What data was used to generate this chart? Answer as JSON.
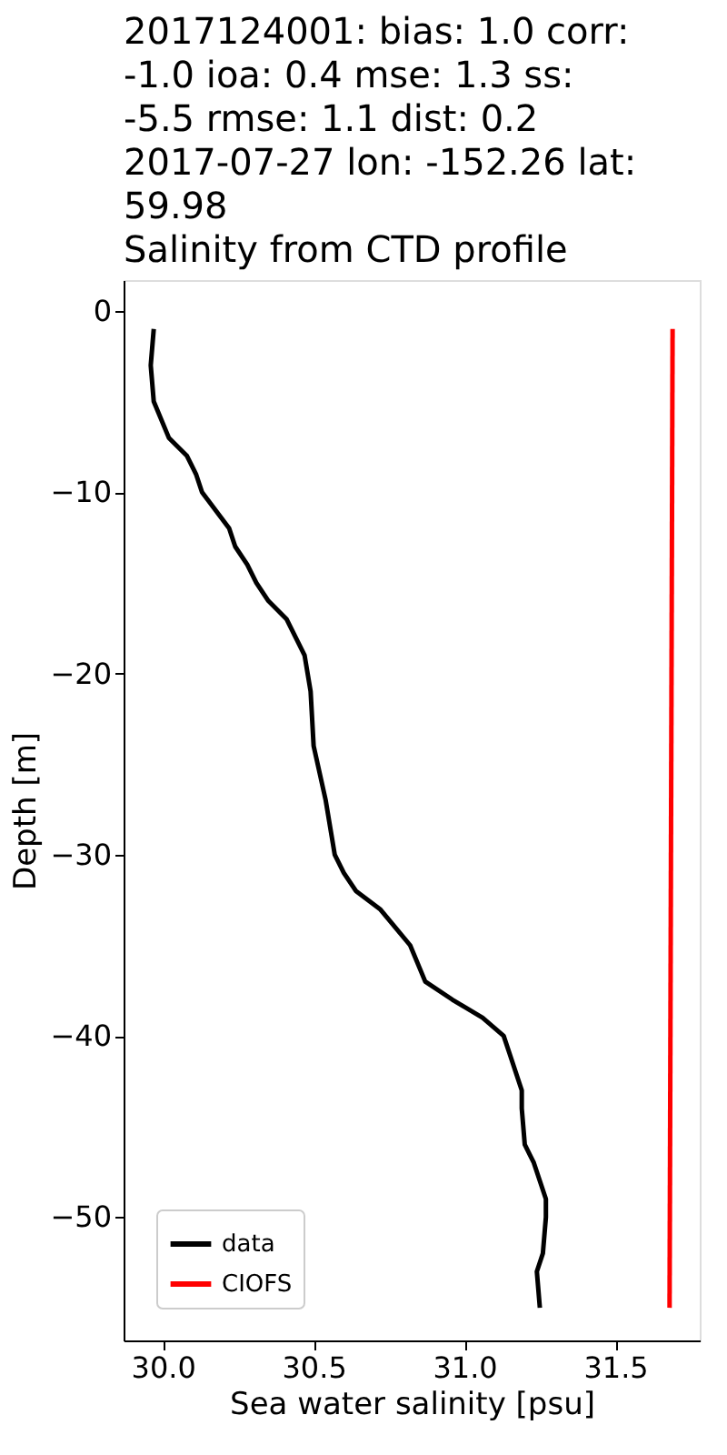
{
  "chart_data": {
    "type": "line",
    "title": [
      "2017124001: bias: 1.0  corr:",
      "-1.0  ioa: 0.4  mse: 1.3  ss:",
      "-5.5  rmse: 1.1  dist: 0.2",
      "2017-07-27 lon: -152.26 lat:",
      "59.98",
      "Salinity from CTD profile"
    ],
    "xlabel": "Sea water salinity [psu]",
    "ylabel": "Depth [m]",
    "series": [
      {
        "name": "data",
        "color": "#000000",
        "x": [
          29.97,
          29.96,
          29.97,
          30.02,
          30.08,
          30.11,
          30.13,
          30.22,
          30.24,
          30.28,
          30.31,
          30.35,
          30.41,
          30.47,
          30.49,
          30.5,
          30.54,
          30.56,
          30.57,
          30.6,
          30.64,
          30.72,
          30.82,
          30.87,
          30.96,
          31.06,
          31.13,
          31.15,
          31.19,
          31.19,
          31.2,
          31.23,
          31.27,
          31.27,
          31.26,
          31.24,
          31.25
        ],
        "values": [
          -1,
          -3,
          -5,
          -7,
          -8,
          -9,
          -10,
          -12,
          -13,
          -14,
          -15,
          -16,
          -17,
          -19,
          -21,
          -24,
          -27,
          -29,
          -30,
          -31,
          -32,
          -33,
          -35,
          -37,
          -38,
          -39,
          -40,
          -41,
          -43,
          -44,
          -46,
          -47,
          -49,
          -50,
          -52,
          -53,
          -55
        ]
      },
      {
        "name": "CIOFS",
        "color": "#ff0000",
        "x": [
          31.69,
          31.68
        ],
        "values": [
          -1,
          -55
        ]
      }
    ],
    "xlim": [
      29.87,
      31.78
    ],
    "ylim": [
      -56.8,
      1.7
    ],
    "xticks": [
      {
        "value": 30,
        "label": "30.0"
      },
      30.5,
      {
        "value": 31,
        "label": "31.0"
      },
      31.5
    ],
    "yticks": [
      0,
      -10,
      -20,
      -30,
      -40,
      -50
    ],
    "grid": false,
    "legend": "bottom left",
    "line_style": "solid",
    "marker": "none"
  }
}
